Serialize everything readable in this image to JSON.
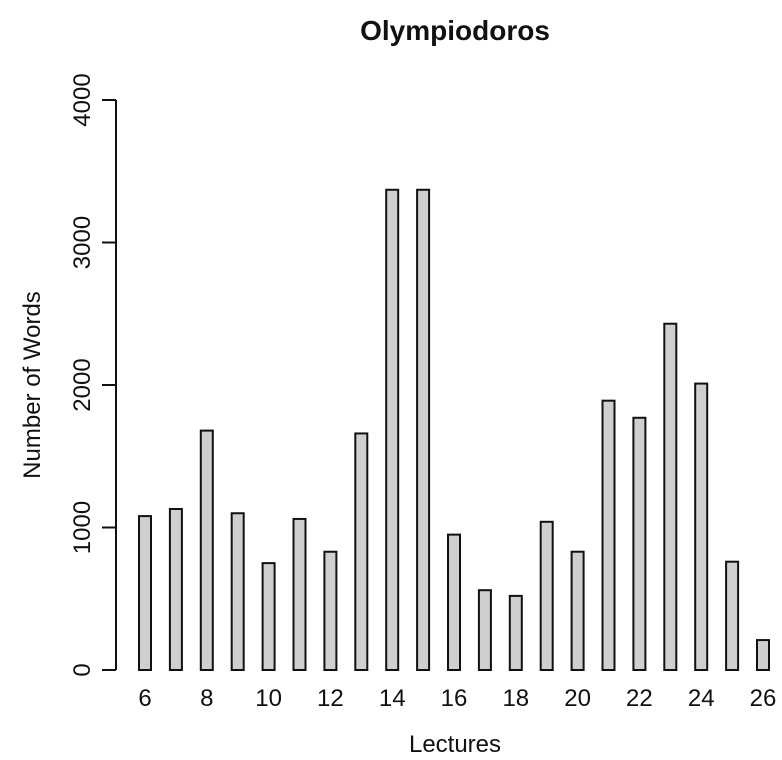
{
  "chart_data": {
    "type": "bar",
    "title": "Olympiodoros",
    "xlabel": "Lectures",
    "ylabel": "Number of Words",
    "categories": [
      6,
      7,
      8,
      9,
      10,
      11,
      12,
      13,
      14,
      15,
      16,
      17,
      18,
      19,
      20,
      21,
      22,
      23,
      24,
      25,
      26
    ],
    "values": [
      1080,
      1130,
      1680,
      1100,
      750,
      1060,
      830,
      1660,
      3370,
      3370,
      950,
      560,
      520,
      1040,
      830,
      1890,
      1770,
      2430,
      2010,
      760,
      210
    ],
    "x_tick_labels": [
      "6",
      "8",
      "10",
      "12",
      "14",
      "16",
      "18",
      "20",
      "22",
      "24",
      "26"
    ],
    "y_tick_labels": [
      "0",
      "1000",
      "2000",
      "3000",
      "4000"
    ],
    "ylim": [
      0,
      4000
    ],
    "bar_color": "#cfcfcf",
    "edge_color": "#111111",
    "grid": false
  }
}
